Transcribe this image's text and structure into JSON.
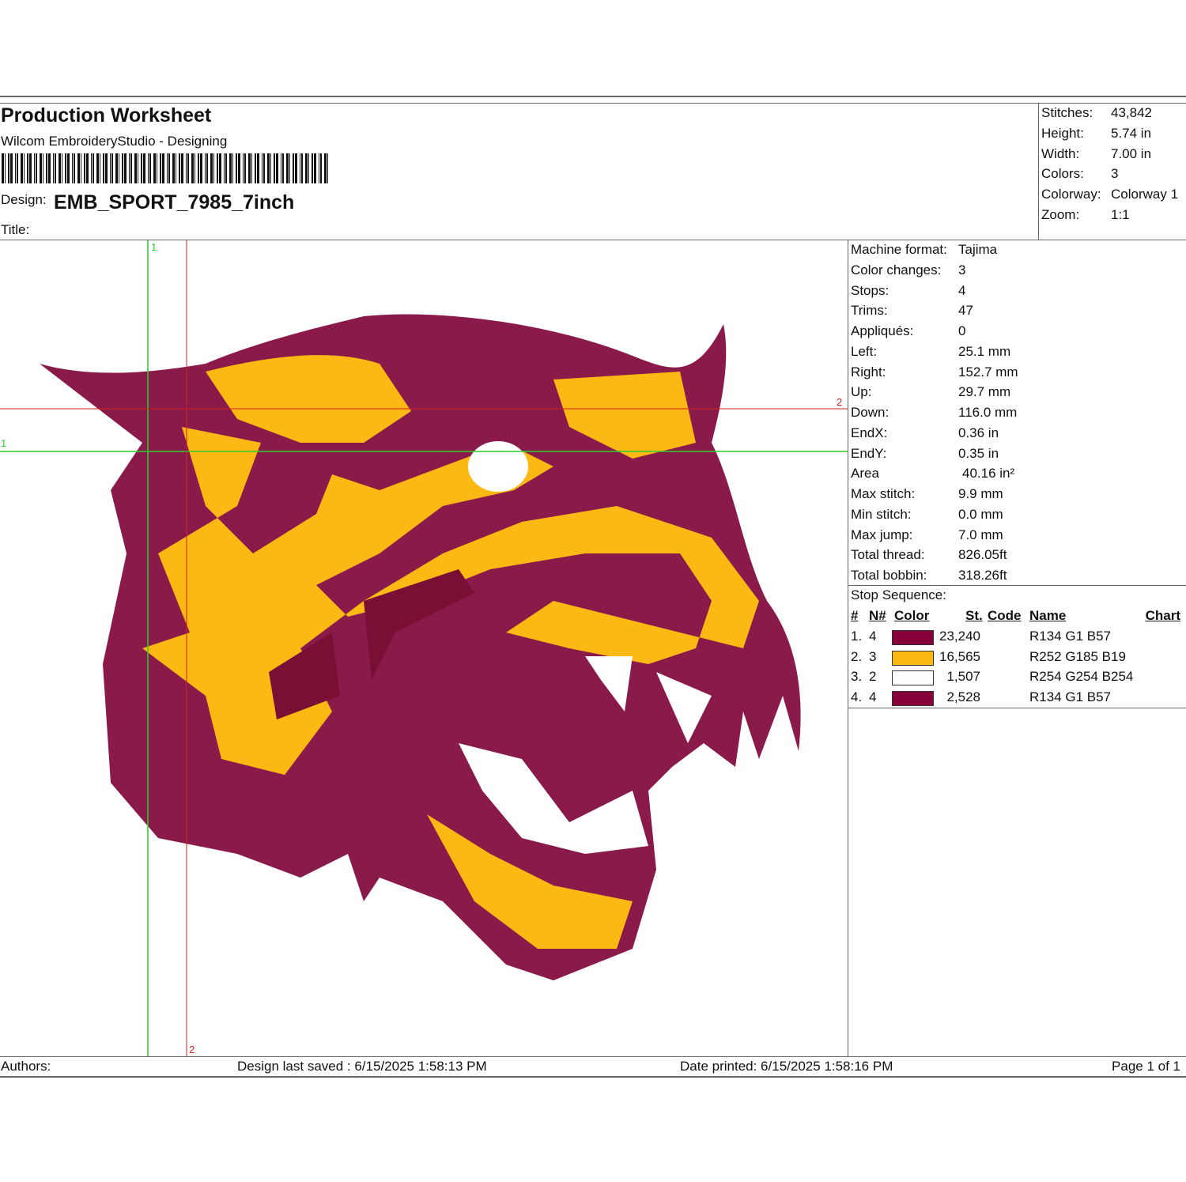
{
  "header": {
    "title": "Production Worksheet",
    "subtitle": "Wilcom EmbroideryStudio - Designing",
    "design_label": "Design:",
    "design": "EMB_SPORT_7985_7inch",
    "title_label": "Title:"
  },
  "summary": [
    {
      "label": "Stitches:",
      "value": "43,842"
    },
    {
      "label": "Height:",
      "value": "5.74 in"
    },
    {
      "label": "Width:",
      "value": "7.00 in"
    },
    {
      "label": "Colors:",
      "value": "3"
    },
    {
      "label": "Colorway:",
      "value": "Colorway 1"
    },
    {
      "label": "Zoom:",
      "value": "1:1"
    }
  ],
  "details": [
    {
      "label": "Machine format:",
      "value": "Tajima"
    },
    {
      "label": "Color changes:",
      "value": "3"
    },
    {
      "label": "Stops:",
      "value": "4"
    },
    {
      "label": "Trims:",
      "value": "47"
    },
    {
      "label": "Appliqués:",
      "value": "0"
    },
    {
      "label": "Left:",
      "value": "25.1 mm"
    },
    {
      "label": "Right:",
      "value": "152.7 mm"
    },
    {
      "label": "Up:",
      "value": "29.7 mm"
    },
    {
      "label": "Down:",
      "value": "116.0 mm"
    },
    {
      "label": "EndX:",
      "value": "0.36 in"
    },
    {
      "label": "EndY:",
      "value": "0.35 in"
    },
    {
      "label": "Area",
      "value": "40.16 in²"
    },
    {
      "label": "Max stitch:",
      "value": "9.9 mm"
    },
    {
      "label": "Min stitch:",
      "value": "0.0 mm"
    },
    {
      "label": "Max jump:",
      "value": "7.0 mm"
    },
    {
      "label": "Total thread:",
      "value": "826.05ft"
    },
    {
      "label": "Total bobbin:",
      "value": "318.26ft"
    }
  ],
  "stop_sequence": {
    "title": "Stop Sequence:",
    "headers": [
      "#",
      "N#",
      "Color",
      "St.",
      "Code",
      "Name",
      "Chart"
    ],
    "rows": [
      {
        "num": "1.",
        "needle": "4",
        "color": "#860139",
        "stitches": "23,240",
        "name": "R134 G1 B57"
      },
      {
        "num": "2.",
        "needle": "3",
        "color": "#fcb913",
        "stitches": "16,565",
        "name": "R252 G185 B19"
      },
      {
        "num": "3.",
        "needle": "2",
        "color": "#fefefe",
        "stitches": "1,507",
        "name": "R254 G254 B254"
      },
      {
        "num": "4.",
        "needle": "4",
        "color": "#860139",
        "stitches": "2,528",
        "name": "R134 G1 B57"
      }
    ]
  },
  "guides": {
    "green_v": "1",
    "red_h": "2",
    "green_h": "1",
    "red_v": "2"
  },
  "footer": {
    "authors": "Authors:",
    "saved": "Design last saved : 6/15/2025 1:58:13 PM",
    "printed": "Date printed: 6/15/2025 1:58:16 PM",
    "page": "Page 1 of 1"
  }
}
